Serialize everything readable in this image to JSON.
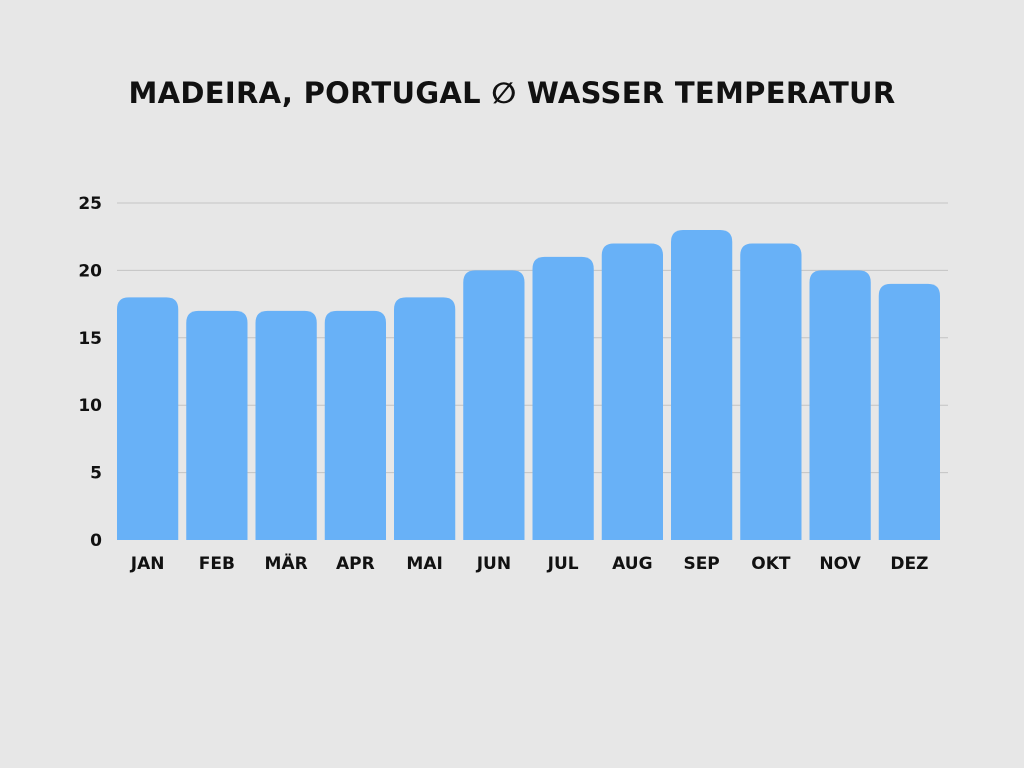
{
  "chart_data": {
    "type": "bar",
    "title": "MADEIRA, PORTUGAL ∅ WASSER TEMPERATUR",
    "xlabel": "",
    "ylabel": "",
    "categories": [
      "JAN",
      "FEB",
      "MÄR",
      "APR",
      "MAI",
      "JUN",
      "JUL",
      "AUG",
      "SEP",
      "OKT",
      "NOV",
      "DEZ"
    ],
    "values": [
      18,
      17,
      17,
      17,
      18,
      20,
      21,
      22,
      23,
      22,
      20,
      19
    ],
    "ylim": [
      0,
      25
    ],
    "yticks": [
      0,
      5,
      10,
      15,
      20,
      25
    ],
    "grid": true,
    "legend": "none",
    "colors": {
      "bar": "#68b1f7",
      "grid": "#c4c4c4",
      "background": "#e7e7e7",
      "text": "#111111"
    }
  }
}
